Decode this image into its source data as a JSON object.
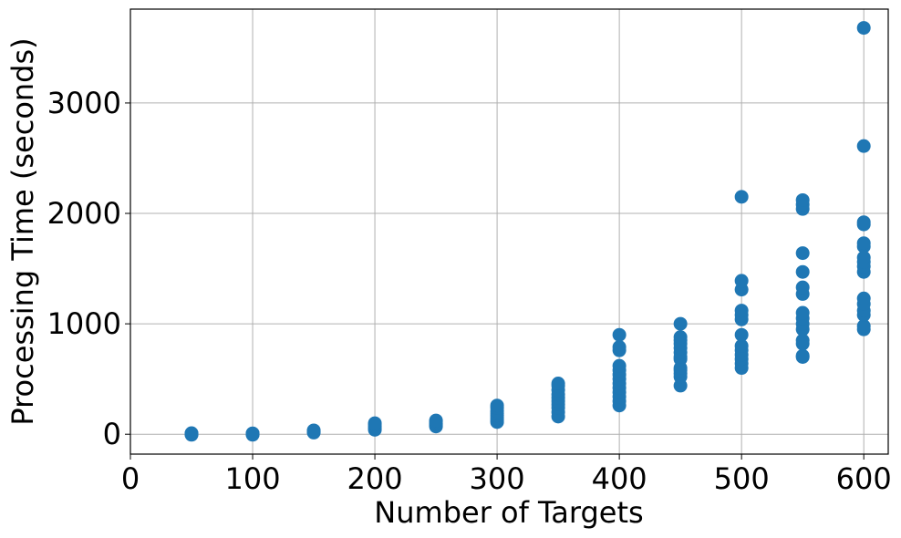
{
  "chart_data": {
    "type": "scatter",
    "title": "",
    "xlabel": "Number of Targets",
    "ylabel": "Processing Time (seconds)",
    "xlim": [
      0,
      620
    ],
    "ylim": [
      -180,
      3850
    ],
    "xticks": [
      0,
      100,
      200,
      300,
      400,
      500,
      600
    ],
    "yticks": [
      0,
      1000,
      2000,
      3000
    ],
    "grid": true,
    "marker_color": "#1f77b4",
    "points": [
      [
        50,
        -5
      ],
      [
        50,
        0
      ],
      [
        50,
        3
      ],
      [
        50,
        6
      ],
      [
        50,
        10
      ],
      [
        100,
        -5
      ],
      [
        100,
        0
      ],
      [
        100,
        3
      ],
      [
        100,
        6
      ],
      [
        100,
        8
      ],
      [
        150,
        15
      ],
      [
        150,
        20
      ],
      [
        150,
        25
      ],
      [
        150,
        30
      ],
      [
        150,
        35
      ],
      [
        200,
        40
      ],
      [
        200,
        50
      ],
      [
        200,
        60
      ],
      [
        200,
        75
      ],
      [
        200,
        90
      ],
      [
        200,
        100
      ],
      [
        250,
        70
      ],
      [
        250,
        80
      ],
      [
        250,
        90
      ],
      [
        250,
        100
      ],
      [
        250,
        115
      ],
      [
        250,
        125
      ],
      [
        300,
        110
      ],
      [
        300,
        130
      ],
      [
        300,
        150
      ],
      [
        300,
        170
      ],
      [
        300,
        190
      ],
      [
        300,
        210
      ],
      [
        300,
        240
      ],
      [
        300,
        260
      ],
      [
        350,
        160
      ],
      [
        350,
        200
      ],
      [
        350,
        240
      ],
      [
        350,
        270
      ],
      [
        350,
        300
      ],
      [
        350,
        330
      ],
      [
        350,
        360
      ],
      [
        350,
        400
      ],
      [
        350,
        440
      ],
      [
        350,
        460
      ],
      [
        400,
        260
      ],
      [
        400,
        300
      ],
      [
        400,
        340
      ],
      [
        400,
        380
      ],
      [
        400,
        420
      ],
      [
        400,
        460
      ],
      [
        400,
        500
      ],
      [
        400,
        540
      ],
      [
        400,
        580
      ],
      [
        400,
        620
      ],
      [
        400,
        760
      ],
      [
        400,
        790
      ],
      [
        400,
        900
      ],
      [
        450,
        440
      ],
      [
        450,
        520
      ],
      [
        450,
        550
      ],
      [
        450,
        580
      ],
      [
        450,
        600
      ],
      [
        450,
        680
      ],
      [
        450,
        700
      ],
      [
        450,
        740
      ],
      [
        450,
        780
      ],
      [
        450,
        820
      ],
      [
        450,
        850
      ],
      [
        450,
        880
      ],
      [
        450,
        1000
      ],
      [
        500,
        600
      ],
      [
        500,
        640
      ],
      [
        500,
        680
      ],
      [
        500,
        720
      ],
      [
        500,
        760
      ],
      [
        500,
        800
      ],
      [
        500,
        900
      ],
      [
        500,
        1040
      ],
      [
        500,
        1080
      ],
      [
        500,
        1120
      ],
      [
        500,
        1310
      ],
      [
        500,
        1390
      ],
      [
        500,
        2150
      ],
      [
        550,
        700
      ],
      [
        550,
        710
      ],
      [
        550,
        820
      ],
      [
        550,
        850
      ],
      [
        550,
        950
      ],
      [
        550,
        1000
      ],
      [
        550,
        1050
      ],
      [
        550,
        1100
      ],
      [
        550,
        1270
      ],
      [
        550,
        1330
      ],
      [
        550,
        1470
      ],
      [
        550,
        1640
      ],
      [
        550,
        2040
      ],
      [
        550,
        2080
      ],
      [
        550,
        2120
      ],
      [
        600,
        950
      ],
      [
        600,
        980
      ],
      [
        600,
        1080
      ],
      [
        600,
        1120
      ],
      [
        600,
        1180
      ],
      [
        600,
        1230
      ],
      [
        600,
        1470
      ],
      [
        600,
        1520
      ],
      [
        600,
        1560
      ],
      [
        600,
        1600
      ],
      [
        600,
        1700
      ],
      [
        600,
        1730
      ],
      [
        600,
        1900
      ],
      [
        600,
        1920
      ],
      [
        600,
        2610
      ],
      [
        600,
        3680
      ]
    ]
  }
}
